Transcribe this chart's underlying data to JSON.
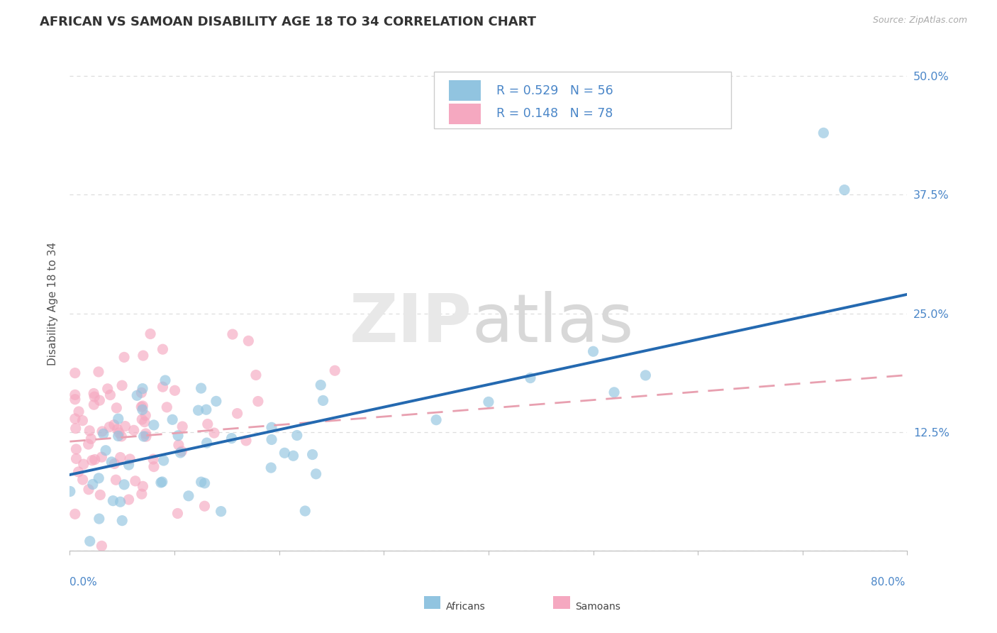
{
  "title": "AFRICAN VS SAMOAN DISABILITY AGE 18 TO 34 CORRELATION CHART",
  "source": "Source: ZipAtlas.com",
  "ylabel": "Disability Age 18 to 34",
  "xlim": [
    0.0,
    0.8
  ],
  "ylim": [
    0.0,
    0.52
  ],
  "yticks": [
    0.0,
    0.125,
    0.25,
    0.375,
    0.5
  ],
  "ytick_labels": [
    "",
    "12.5%",
    "25.0%",
    "37.5%",
    "50.0%"
  ],
  "african_R": 0.529,
  "african_N": 56,
  "samoan_R": 0.148,
  "samoan_N": 78,
  "blue_color": "#91c4e0",
  "pink_color": "#f5a8c0",
  "blue_line_color": "#2469b0",
  "pink_line_color": "#e8607a",
  "pink_dash_color": "#e8a0b0",
  "title_color": "#333333",
  "axis_label_color": "#555555",
  "tick_label_color": "#4a86c8",
  "source_color": "#aaaaaa",
  "background_color": "#ffffff",
  "grid_color": "#dddddd",
  "af_line_start_y": 0.08,
  "af_line_end_y": 0.27,
  "sa_line_start_y": 0.115,
  "sa_line_end_y": 0.185
}
